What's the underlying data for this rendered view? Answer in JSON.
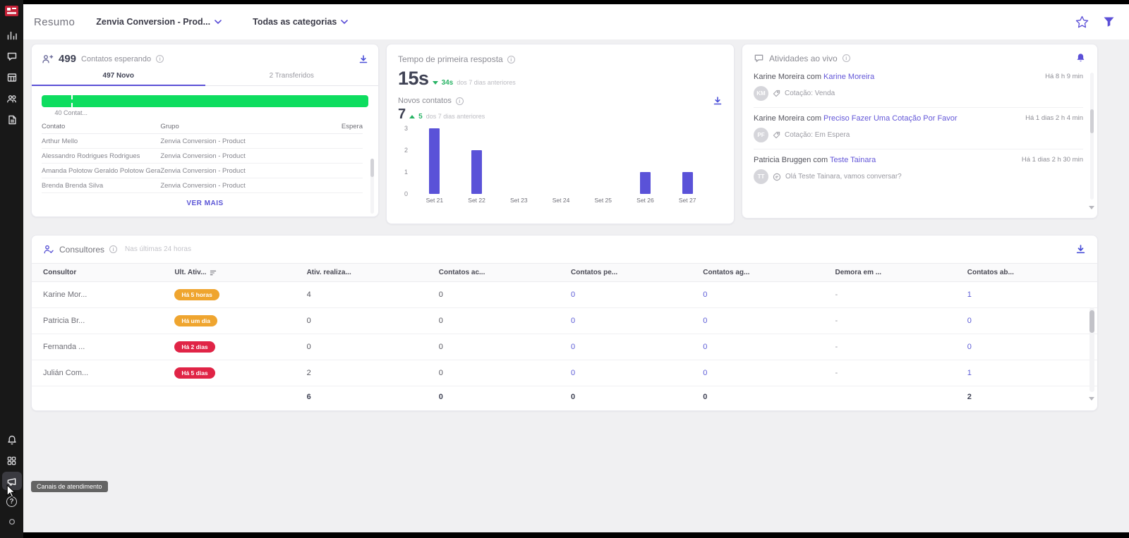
{
  "colors": {
    "accent": "#5b50d6",
    "green_bar": "#0edd5f",
    "green_text": "#27b364",
    "chart_bar": "#5a52d8",
    "badge_orange": "#efa52f",
    "badge_red": "#e02446"
  },
  "header": {
    "title": "Resumo",
    "workspace_selector": "Zenvia Conversion - Prod...",
    "category_selector": "Todas as categorias"
  },
  "sidebar": {
    "tooltip": "Canais de atendimento"
  },
  "waiting": {
    "count": "499",
    "title": "Contatos esperando",
    "tabs": [
      "497 Novo",
      "2 Transferidos"
    ],
    "marker_label": "40 Contat...",
    "columns": [
      "Contato",
      "Grupo",
      "Espera"
    ],
    "rows": [
      {
        "contact": "Arthur Mello",
        "group": "Zenvia Conversion - Product",
        "wait": ""
      },
      {
        "contact": "Alessandro Rodrigues Rodrigues",
        "group": "Zenvia Conversion - Product",
        "wait": ""
      },
      {
        "contact": "Amanda Polotow Geraldo Polotow Geraldo",
        "group": "Zenvia Conversion - Product",
        "wait": ""
      },
      {
        "contact": "Brenda Brenda Silva",
        "group": "Zenvia Conversion - Product",
        "wait": ""
      }
    ],
    "see_more": "VER MAIS"
  },
  "first_response": {
    "title": "Tempo de primeira resposta",
    "value": "15s",
    "delta": "34s",
    "delta_note": "dos 7 dias anteriores",
    "new_contacts_title": "Novos contatos",
    "new_contacts_value": "7",
    "new_contacts_delta": "5",
    "new_contacts_delta_note": "dos 7 dias anteriores"
  },
  "chart_data": {
    "type": "bar",
    "title": "Novos contatos",
    "categories": [
      "Set 21",
      "Set 22",
      "Set 23",
      "Set 24",
      "Set 25",
      "Set 26",
      "Set 27"
    ],
    "values": [
      3,
      2,
      0,
      0,
      0,
      1,
      1
    ],
    "xlabel": "",
    "ylabel": "",
    "ylim": [
      0,
      3
    ],
    "yticks": [
      0,
      1,
      2,
      3
    ],
    "bar_color": "#5a52d8",
    "grid": false,
    "legend": false
  },
  "activities": {
    "title": "Atividades ao vivo",
    "items": [
      {
        "prefix": "Karine Moreira com ",
        "link": "Karine Moreira",
        "time": "Há 8 h 9 min",
        "avatar": "KM",
        "note": "Cotação: Venda"
      },
      {
        "prefix": "Karine Moreira com ",
        "link": "Preciso Fazer Uma Cotação Por Favor",
        "time": "Há 1 dias 2 h 4 min",
        "avatar": "PF",
        "note": "Cotação: Em Espera"
      },
      {
        "prefix": "Patricia Bruggen com ",
        "link": "Teste Tainara",
        "time": "Há 1 dias 2 h 30 min",
        "avatar": "TT",
        "note": "Olá Teste Tainara, vamos conversar?"
      }
    ]
  },
  "consultants": {
    "title": "Consultores",
    "subtitle": "Nas últimas 24 horas",
    "columns": [
      "Consultor",
      "Ult. Ativ...",
      "Ativ. realiza...",
      "Contatos ac...",
      "Contatos pe...",
      "Contatos ag...",
      "Demora em ...",
      "Contatos ab..."
    ],
    "rows": [
      {
        "name": "Karine Mor...",
        "last_activity": "Há 5 horas",
        "badge_color": "#efa52f",
        "activities": "4",
        "accepted": "0",
        "pending": "0",
        "scheduled": "0",
        "delay": "-",
        "open": "1"
      },
      {
        "name": "Patricia Br...",
        "last_activity": "Há um dia",
        "badge_color": "#efa52f",
        "activities": "0",
        "accepted": "0",
        "pending": "0",
        "scheduled": "0",
        "delay": "-",
        "open": "0"
      },
      {
        "name": "Fernanda ...",
        "last_activity": "Há 2 dias",
        "badge_color": "#e02446",
        "activities": "0",
        "accepted": "0",
        "pending": "0",
        "scheduled": "0",
        "delay": "-",
        "open": "0"
      },
      {
        "name": "Julián Com...",
        "last_activity": "Há 5 dias",
        "badge_color": "#e02446",
        "activities": "2",
        "accepted": "0",
        "pending": "0",
        "scheduled": "0",
        "delay": "-",
        "open": "1"
      }
    ],
    "totals": {
      "activities": "6",
      "accepted": "0",
      "pending": "0",
      "scheduled": "0",
      "open": "2"
    }
  }
}
